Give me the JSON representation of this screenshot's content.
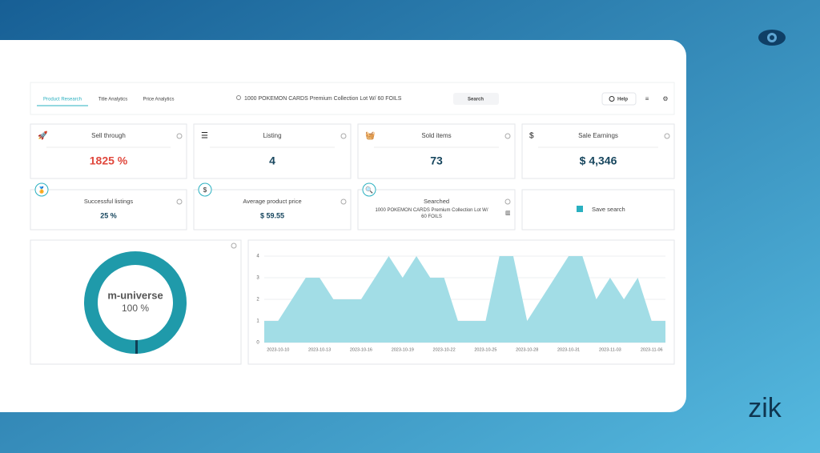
{
  "nav": {
    "tabs": [
      "Product Research",
      "Title Analytics",
      "Price Analytics"
    ],
    "search_query": "1000 POKEMON CARDS Premium Collection Lot W/ 60 FOILS",
    "search_button": "Search",
    "help": "Help"
  },
  "cards": [
    {
      "title": "Sell through",
      "value": "1825 %"
    },
    {
      "title": "Listing",
      "value": "4"
    },
    {
      "title": "Sold items",
      "value": "73"
    },
    {
      "title": "Sale Earnings",
      "value": "$ 4,346"
    }
  ],
  "cards2": [
    {
      "title": "Successful listings",
      "value": "25 %"
    },
    {
      "title": "Average product price",
      "value": "$ 59.55"
    },
    {
      "title": "Searched",
      "value": "1000 POKEMON CARDS Premium Collection Lot W/ 60 FOILS"
    },
    {
      "title": "Save search"
    }
  ],
  "donut": {
    "type": "pie",
    "series": [
      {
        "name": "m-universe",
        "values": [
          100
        ],
        "value_labels": [
          "100 %"
        ],
        "color": "#1f9aaa"
      }
    ]
  },
  "area": {
    "type": "area",
    "categories": [
      null,
      "2023-10-10",
      null,
      null,
      "2023-10-13",
      null,
      null,
      "2023-10-16",
      null,
      null,
      "2023-10-19",
      null,
      null,
      "2023-10-22",
      null,
      null,
      "2023-10-25",
      null,
      null,
      "2023-10-28",
      null,
      null,
      "2023-10-31",
      null,
      null,
      "2023-11-03",
      null,
      null,
      "2023-11-06",
      null
    ],
    "values": [
      1,
      1,
      2,
      3,
      3,
      2,
      2,
      2,
      3,
      4,
      3,
      4,
      3,
      3,
      1,
      1,
      1,
      4,
      4,
      1,
      2,
      3,
      4,
      4,
      2,
      3,
      2,
      3,
      1,
      1
    ],
    "color": "#a2dde6",
    "ylim": [
      0,
      4
    ],
    "yticks": [
      0,
      1,
      2,
      3,
      4
    ],
    "grid": true
  },
  "brand": "zik"
}
